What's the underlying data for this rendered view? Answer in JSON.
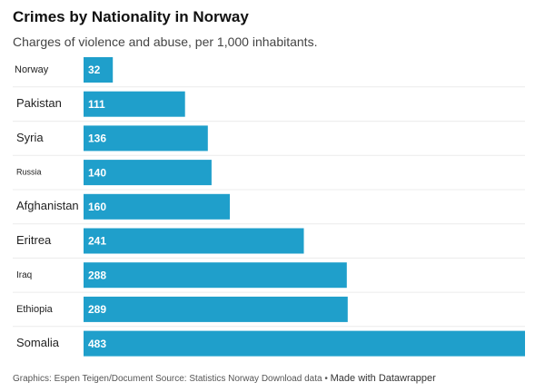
{
  "chart_data": {
    "type": "bar",
    "orientation": "horizontal",
    "title": "Crimes by Nationality in Norway",
    "subtitle": "Charges of violence and abuse, per 1,000 inhabitants.",
    "categories": [
      "Norway",
      "Pakistan",
      "Syria",
      "Russia",
      "Afghanistan",
      "Eritrea",
      "Iraq",
      "Ethiopia",
      "Somalia"
    ],
    "values": [
      32,
      111,
      136,
      140,
      160,
      241,
      288,
      289,
      483
    ],
    "xlim": [
      0,
      483
    ],
    "grid": "horizontal row separators",
    "bar_color": "#1f9fcb",
    "value_label_color": "#ffffff"
  },
  "footer": {
    "credit": "Graphics: Espen Teigen/Document Source: Statistics Norway Download data",
    "separator": "•",
    "made_with": "Made with Datawrapper"
  }
}
